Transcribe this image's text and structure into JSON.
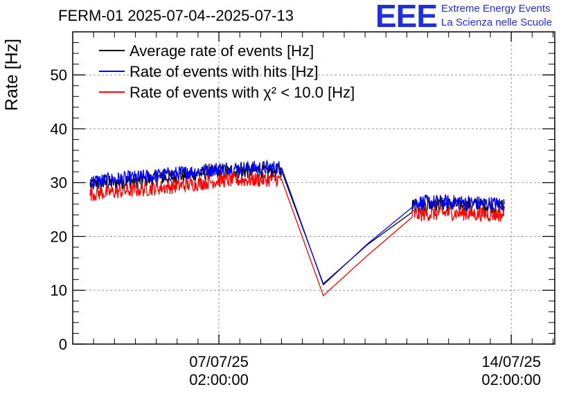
{
  "header": {
    "title": "FERM-01 2025-07-04--2025-07-13",
    "logo_text": "EEE",
    "brand_line1": "Extreme Energy Events",
    "brand_line2": "La Scienza nelle Scuole"
  },
  "chart_data": {
    "type": "line",
    "title": "FERM-01 2025-07-04--2025-07-13",
    "xlabel": "",
    "ylabel": "Rate [Hz]",
    "ylim": [
      0,
      58
    ],
    "xlim_hours": [
      -84,
      193
    ],
    "x_ticks": [
      {
        "at_hours": 0,
        "line1": "07/07/25",
        "line2": "02:00:00"
      },
      {
        "at_hours": 168,
        "line1": "14/07/25",
        "line2": "02:00:00"
      }
    ],
    "y_ticks": [
      0,
      10,
      20,
      30,
      40,
      50
    ],
    "grid": true,
    "legend_position": "top-left",
    "series": [
      {
        "name": "Average rate of events [Hz]",
        "color": "#000000",
        "points": [
          [
            -74,
            29.6
          ],
          [
            -45,
            30.4
          ],
          [
            -20,
            31.3
          ],
          [
            0,
            32.0
          ],
          [
            36,
            32.2
          ],
          [
            60,
            11.2
          ],
          [
            111,
            25.8
          ],
          [
            131,
            26.0
          ],
          [
            164,
            25.6
          ]
        ]
      },
      {
        "name": "Rate of events with hits [Hz]",
        "color": "#0000ff",
        "points": [
          [
            -74,
            30.2
          ],
          [
            -45,
            31.0
          ],
          [
            -20,
            31.8
          ],
          [
            0,
            32.6
          ],
          [
            36,
            32.8
          ],
          [
            60,
            11.0
          ],
          [
            111,
            26.3
          ],
          [
            131,
            26.4
          ],
          [
            164,
            26.0
          ]
        ]
      },
      {
        "name": "Rate of events with χ² < 10.0 [Hz]",
        "color": "#ff0000",
        "points": [
          [
            -74,
            27.9
          ],
          [
            -45,
            28.7
          ],
          [
            -20,
            29.5
          ],
          [
            0,
            30.4
          ],
          [
            36,
            30.6
          ],
          [
            60,
            9.0
          ],
          [
            111,
            24.0
          ],
          [
            131,
            24.4
          ],
          [
            164,
            24.0
          ]
        ]
      }
    ]
  }
}
